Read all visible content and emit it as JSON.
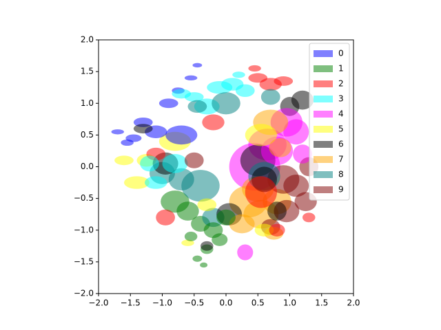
{
  "chart_data": {
    "type": "ellipse",
    "alpha": 0.5,
    "legend": "upper right",
    "xlim": [
      -2,
      2
    ],
    "ylim": [
      -2,
      2
    ],
    "xticks": [
      {
        "value": -2,
        "label": "−2.0"
      },
      {
        "value": -1.5,
        "label": "−1.5"
      },
      {
        "value": -1,
        "label": "−1.0"
      },
      {
        "value": -0.5,
        "label": "−0.5"
      },
      {
        "value": 0,
        "label": "0.0"
      },
      {
        "value": 0.5,
        "label": "0.5"
      },
      {
        "value": 1,
        "label": "1.0"
      },
      {
        "value": 1.5,
        "label": "1.5"
      },
      {
        "value": 2,
        "label": "2.0"
      }
    ],
    "yticks": [
      {
        "value": -2,
        "label": "−2.0"
      },
      {
        "value": -1.5,
        "label": "−1.5"
      },
      {
        "value": -1,
        "label": "−1.0"
      },
      {
        "value": -0.5,
        "label": "−0.5"
      },
      {
        "value": 0,
        "label": "0.0"
      },
      {
        "value": 0.5,
        "label": "0.5"
      },
      {
        "value": 1,
        "label": "1.0"
      },
      {
        "value": 1.5,
        "label": "1.5"
      },
      {
        "value": 2,
        "label": "2.0"
      }
    ],
    "series": [
      {
        "name": "0",
        "color": "#0000ff",
        "x": [
          -1.7,
          -1.45,
          -1.3,
          -1.1,
          -0.7,
          -0.9,
          -0.55,
          -1.55,
          -0.45,
          -0.75
        ],
        "y": [
          0.55,
          0.45,
          0.7,
          0.55,
          0.5,
          1.0,
          1.4,
          0.38,
          1.6,
          1.2
        ],
        "width": [
          0.2,
          0.25,
          0.3,
          0.35,
          0.5,
          0.3,
          0.2,
          0.2,
          0.15,
          0.2
        ],
        "height": [
          0.08,
          0.12,
          0.15,
          0.2,
          0.3,
          0.15,
          0.08,
          0.1,
          0.07,
          0.1
        ]
      },
      {
        "name": "1",
        "color": "#008000",
        "x": [
          -0.8,
          -0.6,
          -0.4,
          -0.2,
          -0.3,
          -0.45,
          -0.1,
          -0.35,
          -0.55,
          0.0
        ],
        "y": [
          -0.55,
          -0.7,
          -0.9,
          -1.0,
          -1.3,
          -1.45,
          -1.15,
          -1.55,
          -1.1,
          -0.8
        ],
        "width": [
          0.45,
          0.35,
          0.3,
          0.3,
          0.2,
          0.15,
          0.25,
          0.12,
          0.2,
          0.3
        ],
        "height": [
          0.35,
          0.3,
          0.25,
          0.25,
          0.15,
          0.1,
          0.2,
          0.08,
          0.15,
          0.25
        ]
      },
      {
        "name": "2",
        "color": "#ff0000",
        "x": [
          0.5,
          0.7,
          0.9,
          0.45,
          -0.2,
          -1.1,
          -0.95,
          0.8,
          1.3,
          0.55
        ],
        "y": [
          1.4,
          1.3,
          1.35,
          1.55,
          0.7,
          0.2,
          -0.8,
          -1.0,
          -0.8,
          -0.4
        ],
        "width": [
          0.3,
          0.35,
          0.3,
          0.2,
          0.35,
          0.3,
          0.3,
          0.25,
          0.2,
          0.5
        ],
        "height": [
          0.15,
          0.2,
          0.15,
          0.1,
          0.25,
          0.2,
          0.25,
          0.2,
          0.15,
          0.5
        ]
      },
      {
        "name": "3",
        "color": "#00ffff",
        "x": [
          -0.1,
          0.1,
          0.3,
          -0.5,
          -0.3,
          -1.2,
          -0.8,
          -1.1,
          0.2,
          -0.7
        ],
        "y": [
          1.25,
          1.3,
          1.2,
          1.1,
          0.95,
          0.05,
          0.05,
          -0.25,
          1.45,
          1.15
        ],
        "width": [
          0.4,
          0.35,
          0.3,
          0.3,
          0.4,
          0.3,
          0.4,
          0.35,
          0.2,
          0.3
        ],
        "height": [
          0.2,
          0.2,
          0.2,
          0.15,
          0.25,
          0.25,
          0.3,
          0.2,
          0.1,
          0.15
        ]
      },
      {
        "name": "4",
        "color": "#ff00ff",
        "x": [
          0.45,
          0.65,
          0.95,
          1.1,
          0.8,
          0.3,
          1.2
        ],
        "y": [
          0.0,
          0.35,
          0.7,
          0.55,
          0.25,
          -1.35,
          0.2
        ],
        "width": [
          0.8,
          0.6,
          0.5,
          0.4,
          0.5,
          0.25,
          0.3
        ],
        "height": [
          0.75,
          0.5,
          0.45,
          0.4,
          0.45,
          0.25,
          0.3
        ]
      },
      {
        "name": "5",
        "color": "#ffff00",
        "x": [
          -1.4,
          -1.25,
          -0.8,
          -1.6,
          -0.3,
          0.55,
          0.6,
          -0.6
        ],
        "y": [
          -0.25,
          0.1,
          0.4,
          0.1,
          -0.6,
          0.5,
          -1.0,
          -1.2
        ],
        "width": [
          0.4,
          0.3,
          0.5,
          0.3,
          0.3,
          0.5,
          0.3,
          0.2
        ],
        "height": [
          0.2,
          0.2,
          0.3,
          0.15,
          0.2,
          0.35,
          0.2,
          0.1
        ]
      },
      {
        "name": "6",
        "color": "#000000",
        "x": [
          1.2,
          1.0,
          0.5,
          0.05,
          -0.95,
          -1.3,
          -0.3,
          0.8,
          0.6
        ],
        "y": [
          1.05,
          0.95,
          0.1,
          -0.75,
          0.05,
          0.6,
          -1.25,
          -0.7,
          -0.2
        ],
        "width": [
          0.35,
          0.3,
          0.55,
          0.4,
          0.4,
          0.3,
          0.2,
          0.3,
          0.4
        ],
        "height": [
          0.3,
          0.3,
          0.5,
          0.35,
          0.35,
          0.15,
          0.15,
          0.3,
          0.4
        ]
      },
      {
        "name": "7",
        "color": "#ffa500",
        "x": [
          0.35,
          0.55,
          0.8,
          0.7,
          0.25,
          0.75,
          0.85,
          0.5
        ],
        "y": [
          -0.55,
          -0.75,
          -0.55,
          0.7,
          -0.9,
          -1.05,
          0.3,
          -0.35
        ],
        "width": [
          0.6,
          0.55,
          0.45,
          0.55,
          0.4,
          0.3,
          0.35,
          0.5
        ],
        "height": [
          0.5,
          0.45,
          0.4,
          0.4,
          0.3,
          0.2,
          0.3,
          0.4
        ]
      },
      {
        "name": "8",
        "color": "#008080",
        "x": [
          -0.4,
          -0.7,
          -0.2,
          -1.0,
          0.0,
          0.7,
          -0.45,
          0.6
        ],
        "y": [
          -0.3,
          -0.2,
          -0.8,
          -0.1,
          1.0,
          1.1,
          0.95,
          -0.15
        ],
        "width": [
          0.6,
          0.4,
          0.35,
          0.4,
          0.45,
          0.3,
          0.3,
          0.5
        ],
        "height": [
          0.5,
          0.35,
          0.3,
          0.35,
          0.35,
          0.25,
          0.2,
          0.45
        ]
      },
      {
        "name": "9",
        "color": "#800000",
        "x": [
          1.1,
          1.25,
          0.95,
          0.7,
          1.3,
          0.9,
          -0.5
        ],
        "y": [
          -0.3,
          -0.55,
          -0.7,
          -0.95,
          0.0,
          -0.2,
          0.1
        ],
        "width": [
          0.4,
          0.35,
          0.4,
          0.3,
          0.3,
          0.5,
          0.3
        ],
        "height": [
          0.35,
          0.3,
          0.35,
          0.25,
          0.3,
          0.45,
          0.25
        ]
      }
    ]
  }
}
